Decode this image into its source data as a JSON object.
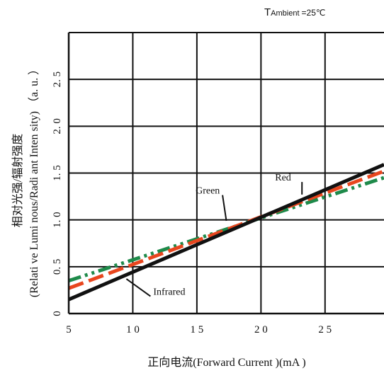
{
  "chart_data": {
    "type": "line",
    "title": "",
    "condition": {
      "prefix": "T",
      "subscript": "Ambient",
      "value": "=25",
      "unit": "℃"
    },
    "xlabel": "正向电流(Forward  Current )(mA )",
    "ylabel_line1": "相对光强/辐射强度",
    "ylabel_line2": "(Relati ve Lumi nous/Radi ant  Inten sity) （a. u. ）",
    "xlim": [
      5,
      29.6
    ],
    "ylim": [
      0,
      3
    ],
    "grid": true,
    "x_ticks": [
      {
        "value": 5,
        "label": "5"
      },
      {
        "value": 10,
        "label": "1 0"
      },
      {
        "value": 15,
        "label": "1 5"
      },
      {
        "value": 20,
        "label": "2 0"
      },
      {
        "value": 25,
        "label": "2 5"
      }
    ],
    "y_ticks": [
      {
        "value": 0,
        "label": "0"
      },
      {
        "value": 0.5,
        "label": "0. 5"
      },
      {
        "value": 1.0,
        "label": "1. 0"
      },
      {
        "value": 1.5,
        "label": "1. 5"
      },
      {
        "value": 2.0,
        "label": "2. 0"
      },
      {
        "value": 2.5,
        "label": "2. 5"
      }
    ],
    "series": [
      {
        "key": "infrared",
        "name": "Infrared",
        "color": "#111111",
        "dash": "solid",
        "x": [
          5,
          29.6
        ],
        "y": [
          0.15,
          1.59
        ]
      },
      {
        "key": "red",
        "name": "Red",
        "color": "#e8461e",
        "dash": "dash",
        "x": [
          5,
          29.6
        ],
        "y": [
          0.27,
          1.52
        ]
      },
      {
        "key": "green",
        "name": "Green",
        "color": "#1e8a4a",
        "dash": "dashdotdot",
        "x": [
          5,
          29.6
        ],
        "y": [
          0.35,
          1.45
        ]
      }
    ],
    "annotations": [
      {
        "text": "Red",
        "series": "red",
        "text_x": 21.1,
        "text_y": 1.42,
        "point_x": 23.2,
        "point_y": 1.27
      },
      {
        "text": "Green",
        "series": "green",
        "text_x": 14.9,
        "text_y": 1.28,
        "point_x": 17.3,
        "point_y": 0.99
      },
      {
        "text": "Infrared",
        "series": "infrared",
        "text_x": 11.6,
        "text_y": 0.2,
        "point_x": 9.5,
        "point_y": 0.37
      }
    ]
  }
}
